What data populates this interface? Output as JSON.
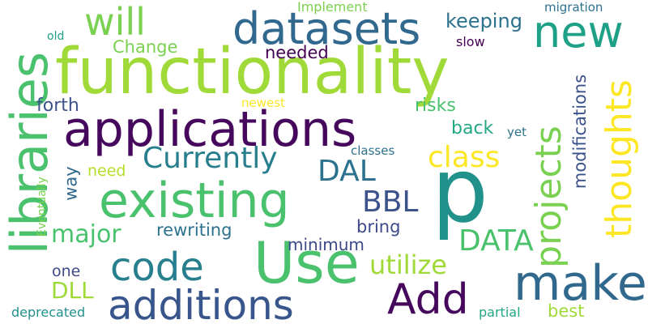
{
  "words": [
    {
      "text": "functionality",
      "color": "#a0da39"
    },
    {
      "text": "applications",
      "color": "#46085c"
    },
    {
      "text": "libraries",
      "color": "#4ac16d"
    },
    {
      "text": "existing",
      "color": "#4ac16d"
    },
    {
      "text": "Use",
      "color": "#4ac16d"
    },
    {
      "text": "p",
      "color": "#21918c"
    },
    {
      "text": "datasets",
      "color": "#31688e"
    },
    {
      "text": "new",
      "color": "#1fa187"
    },
    {
      "text": "will",
      "color": "#7ad151"
    },
    {
      "text": "thoughts",
      "color": "#fde725"
    },
    {
      "text": "projects",
      "color": "#7ad151"
    },
    {
      "text": "make",
      "color": "#31688e"
    },
    {
      "text": "code",
      "color": "#277f8e"
    },
    {
      "text": "additions",
      "color": "#39568c"
    },
    {
      "text": "Add",
      "color": "#46085c"
    },
    {
      "text": "Currently",
      "color": "#277f8e"
    },
    {
      "text": "DAL",
      "color": "#2c728e"
    },
    {
      "text": "class",
      "color": "#fde725"
    },
    {
      "text": "BBL",
      "color": "#3b528b"
    },
    {
      "text": "DATA",
      "color": "#4ac16d"
    },
    {
      "text": "utilize",
      "color": "#a0da39"
    },
    {
      "text": "major",
      "color": "#4ac16d"
    },
    {
      "text": "DLL",
      "color": "#a0da39"
    },
    {
      "text": "keeping",
      "color": "#2c728e"
    },
    {
      "text": "Change",
      "color": "#7ad151"
    },
    {
      "text": "needed",
      "color": "#440154"
    },
    {
      "text": "forth",
      "color": "#3b528b"
    },
    {
      "text": "risks",
      "color": "#4ac16d"
    },
    {
      "text": "back",
      "color": "#22a884"
    },
    {
      "text": "modifications",
      "color": "#3b528b"
    },
    {
      "text": "rewriting",
      "color": "#2c728e"
    },
    {
      "text": "minimum",
      "color": "#3e4989"
    },
    {
      "text": "bring",
      "color": "#3e4989"
    },
    {
      "text": "way",
      "color": "#31688e"
    },
    {
      "text": "need",
      "color": "#b5de2b"
    },
    {
      "text": "one",
      "color": "#3e4989"
    },
    {
      "text": "Implement",
      "color": "#7ad151"
    },
    {
      "text": "migration",
      "color": "#2c728e"
    },
    {
      "text": "old",
      "color": "#1fa187"
    },
    {
      "text": "slow",
      "color": "#440154"
    },
    {
      "text": "newest",
      "color": "#fde725"
    },
    {
      "text": "yet",
      "color": "#2c728e"
    },
    {
      "text": "classes",
      "color": "#2c728e"
    },
    {
      "text": "Eventually",
      "color": "#7ad151"
    },
    {
      "text": "deprecated",
      "color": "#21918c"
    },
    {
      "text": "partial",
      "color": "#22a884"
    },
    {
      "text": "best",
      "color": "#a0da39"
    }
  ]
}
